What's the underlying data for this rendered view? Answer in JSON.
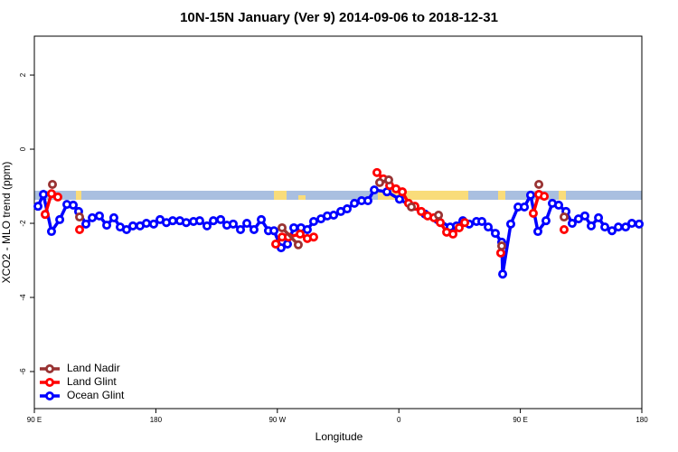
{
  "chart_data": {
    "type": "line",
    "title": "10N-15N January (Ver 9)   2014-09-06 to 2018-12-31",
    "x_label": "Longitude",
    "y_label": "XCO2 - MLO trend (ppm)",
    "xlim": [
      90,
      540
    ],
    "xticks": [
      {
        "value": 90,
        "label": "90 E"
      },
      {
        "value": 180,
        "label": "180"
      },
      {
        "value": 270,
        "label": "90 W"
      },
      {
        "value": 360,
        "label": "0"
      },
      {
        "value": 450,
        "label": "90 E"
      },
      {
        "value": 540,
        "label": "180"
      }
    ],
    "ylim": [
      -7,
      3.05
    ],
    "yticks": [
      -6,
      -4,
      -2,
      0,
      2
    ],
    "legend": "bottom-left",
    "series": [
      {
        "name": "Land Nadir",
        "color": "#993333",
        "x": [
          103.4,
          123.5,
          273.5,
          285.5,
          345.8,
          352.5,
          369.3,
          389.4,
          436.2,
          463.7,
          482.4
        ],
        "values": [
          -0.95,
          -1.83,
          -2.12,
          -2.58,
          -0.9,
          -0.83,
          -1.56,
          -1.78,
          -2.61,
          -0.95,
          -1.83
        ]
      },
      {
        "name": "Land Glint",
        "color": "#ff0000",
        "x": [
          98.0,
          102.7,
          107.4,
          123.5,
          268.8,
          273.5,
          278.2,
          286.9,
          292.2,
          296.9,
          343.8,
          348.5,
          353.2,
          357.9,
          362.6,
          367.2,
          371.9,
          376.6,
          381.3,
          386.0,
          390.7,
          395.4,
          400.1,
          404.7,
          408.8,
          435.5,
          459.6,
          463.7,
          467.7,
          482.4
        ],
        "values": [
          -1.76,
          -1.2,
          -1.29,
          -2.17,
          -2.56,
          -2.37,
          -2.37,
          -2.29,
          -2.41,
          -2.37,
          -0.63,
          -0.8,
          -0.98,
          -1.07,
          -1.15,
          -1.46,
          -1.54,
          -1.68,
          -1.8,
          -1.85,
          -1.98,
          -2.24,
          -2.29,
          -2.12,
          -1.98,
          -2.8,
          -1.73,
          -1.22,
          -1.27,
          -2.17
        ]
      },
      {
        "name": "Ocean Glint",
        "color": "#0000ff",
        "x": [
          92.7,
          96.7,
          102.7,
          108.8,
          114.1,
          118.8,
          122.8,
          128.2,
          132.9,
          138.2,
          143.6,
          148.9,
          153.6,
          158.3,
          163.0,
          168.3,
          173.0,
          178.4,
          183.1,
          187.8,
          192.5,
          197.8,
          202.5,
          207.9,
          212.5,
          217.9,
          222.6,
          228.0,
          232.6,
          237.3,
          242.7,
          247.4,
          252.7,
          258.1,
          263.4,
          267.5,
          272.8,
          277.5,
          282.2,
          287.5,
          292.2,
          296.9,
          302.3,
          307.0,
          311.7,
          317.0,
          321.7,
          327.1,
          332.4,
          337.1,
          341.8,
          351.2,
          360.5,
          369.9,
          379.3,
          388.7,
          398.0,
          402.7,
          407.4,
          412.1,
          417.5,
          421.5,
          426.2,
          431.5,
          436.2,
          436.9,
          442.9,
          448.3,
          453.0,
          457.6,
          463.0,
          469.0,
          473.7,
          478.4,
          483.8,
          488.4,
          493.1,
          497.8,
          502.5,
          507.9,
          512.6,
          517.9,
          522.6,
          528.0,
          532.6,
          538.0
        ],
        "values": [
          -1.54,
          -1.22,
          -2.22,
          -1.9,
          -1.49,
          -1.51,
          -1.68,
          -2.02,
          -1.85,
          -1.8,
          -2.05,
          -1.85,
          -2.1,
          -2.17,
          -2.07,
          -2.07,
          -2.0,
          -2.02,
          -1.9,
          -1.98,
          -1.93,
          -1.93,
          -1.98,
          -1.95,
          -1.93,
          -2.07,
          -1.93,
          -1.9,
          -2.05,
          -2.02,
          -2.17,
          -2.0,
          -2.17,
          -1.9,
          -2.2,
          -2.2,
          -2.66,
          -2.56,
          -2.12,
          -2.12,
          -2.17,
          -1.95,
          -1.88,
          -1.8,
          -1.78,
          -1.68,
          -1.61,
          -1.46,
          -1.39,
          -1.39,
          -1.1,
          -1.15,
          -1.35,
          -1.55,
          -1.75,
          -1.9,
          -2.1,
          -2.07,
          -1.93,
          -2.02,
          -1.95,
          -1.95,
          -2.1,
          -2.27,
          -2.51,
          -3.37,
          -2.02,
          -1.56,
          -1.56,
          -1.24,
          -2.22,
          -1.93,
          -1.46,
          -1.51,
          -1.68,
          -2.0,
          -1.88,
          -1.8,
          -2.07,
          -1.85,
          -2.1,
          -2.2,
          -2.1,
          -2.1,
          -2.0,
          -2.02
        ]
      }
    ]
  }
}
